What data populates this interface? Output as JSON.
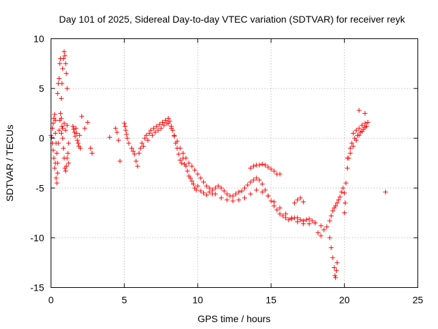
{
  "chart_data": {
    "type": "scatter",
    "title": "Day 101 of 2025, Sidereal Day-to-day VTEC variation (SDTVAR) for receiver reyk",
    "xlabel": "GPS time / hours",
    "ylabel": "SDTVAR / TECUs",
    "xlim": [
      0,
      25
    ],
    "ylim": [
      -15,
      10
    ],
    "xticks": [
      0,
      5,
      10,
      15,
      20,
      25
    ],
    "yticks": [
      -15,
      -10,
      -5,
      0,
      5,
      10
    ],
    "xtick_labels": [
      "0",
      "5",
      "10",
      "15",
      "20",
      "25"
    ],
    "ytick_labels": [
      "-15",
      "-10",
      "-5",
      "0",
      "5",
      "10"
    ],
    "grid": true,
    "marker": "+",
    "color": "#ff0000",
    "series": [
      {
        "name": "SDTVAR",
        "x": [
          0.0,
          0.05,
          0.1,
          0.15,
          0.2,
          0.25,
          0.3,
          0.35,
          0.4,
          0.45,
          0.1,
          0.15,
          0.2,
          0.25,
          0.3,
          0.3,
          0.35,
          0.4,
          0.45,
          0.5,
          0.55,
          0.6,
          0.65,
          0.7,
          0.75,
          0.8,
          0.85,
          0.9,
          0.95,
          1.0,
          1.05,
          1.1,
          1.15,
          1.2,
          0.7,
          0.75,
          0.8,
          0.85,
          0.9,
          0.95,
          1.0,
          1.05,
          1.1,
          0.7,
          0.8,
          0.9,
          1.0,
          1.1,
          1.2,
          0.45,
          0.5,
          0.55,
          0.6,
          0.65,
          1.5,
          1.55,
          1.6,
          1.65,
          1.7,
          1.75,
          1.8,
          1.85,
          1.9,
          1.95,
          2.0,
          2.1,
          2.3,
          2.5,
          2.7,
          2.8,
          4.0,
          4.4,
          4.5,
          4.6,
          4.7,
          5.0,
          5.05,
          5.1,
          5.15,
          5.2,
          5.3,
          5.5,
          5.6,
          5.7,
          5.8,
          5.9,
          6.0,
          6.1,
          6.2,
          6.3,
          6.4,
          6.5,
          6.6,
          6.7,
          6.8,
          6.9,
          7.0,
          7.1,
          7.2,
          7.3,
          7.4,
          7.5,
          7.6,
          7.7,
          7.8,
          7.9,
          8.0,
          8.1,
          8.2,
          8.3,
          8.4,
          8.5,
          8.6,
          8.7,
          8.8,
          8.9,
          9.0,
          9.1,
          9.2,
          9.3,
          9.4,
          9.5,
          9.6,
          9.7,
          9.8,
          9.9,
          8.0,
          8.2,
          8.4,
          8.6,
          8.8,
          9.0,
          9.2,
          9.4,
          9.6,
          9.8,
          10.0,
          10.2,
          10.4,
          10.6,
          10.8,
          11.0,
          10.0,
          10.2,
          10.4,
          10.6,
          10.8,
          11.0,
          11.2,
          11.4,
          11.6,
          11.8,
          12.0,
          12.2,
          12.4,
          12.6,
          12.8,
          13.0,
          13.2,
          13.4,
          13.6,
          13.8,
          14.0,
          14.2,
          14.4,
          14.6,
          14.8,
          15.0,
          15.2,
          15.4,
          15.6,
          15.8,
          16.0,
          16.2,
          16.4,
          16.6,
          16.8,
          17.0,
          17.2,
          17.4,
          17.6,
          17.8,
          18.0,
          11.2,
          11.6,
          12.0,
          12.4,
          12.8,
          13.2,
          13.6,
          14.0,
          14.4,
          14.8,
          15.2,
          15.6,
          16.0,
          16.4,
          16.8,
          17.2,
          17.6,
          18.0,
          18.4,
          13.6,
          13.8,
          14.0,
          14.2,
          14.4,
          14.6,
          14.8,
          15.0,
          15.2,
          15.4,
          15.6,
          16.6,
          16.8,
          17.0,
          17.2,
          18.2,
          18.4,
          18.6,
          18.8,
          19.0,
          19.1,
          19.2,
          19.3,
          19.4,
          19.5,
          19.6,
          19.7,
          19.8,
          19.9,
          20.0,
          20.05,
          19.0,
          19.1,
          19.2,
          19.3,
          19.35,
          19.4,
          19.45,
          19.5,
          20.0,
          20.1,
          20.2,
          20.3,
          20.4,
          20.5,
          20.6,
          20.7,
          20.8,
          20.9,
          21.0,
          21.1,
          21.2,
          21.3,
          21.4,
          21.5,
          21.6,
          20.2,
          20.4,
          20.6,
          20.8,
          21.0,
          21.2,
          21.4,
          21.0,
          21.4,
          22.8
        ],
        "y": [
          0.3,
          0.1,
          -0.5,
          -1.2,
          -2.0,
          -3.0,
          -2.5,
          -4.0,
          -4.5,
          -3.5,
          1.0,
          1.5,
          2.0,
          2.4,
          1.8,
          0.5,
          -0.5,
          -1.5,
          -2.5,
          -0.5,
          0.8,
          1.8,
          2.5,
          2.0,
          1.2,
          0.0,
          -1.0,
          -2.0,
          -3.0,
          -3.3,
          -2.8,
          -2.0,
          -1.5,
          -2.5,
          4.0,
          5.5,
          7.0,
          8.0,
          8.7,
          8.3,
          7.5,
          6.5,
          5.0,
          0.5,
          1.0,
          1.5,
          0.8,
          1.3,
          -0.5,
          4.5,
          5.5,
          6.0,
          7.5,
          8.0,
          1.2,
          0.9,
          0.6,
          0.2,
          1.0,
          0.5,
          -0.2,
          -0.5,
          -0.8,
          0.3,
          -1.0,
          2.2,
          1.0,
          1.6,
          -1.0,
          -1.5,
          0.1,
          1.0,
          0.6,
          -0.2,
          -2.3,
          1.5,
          1.2,
          0.8,
          0.4,
          0.0,
          -0.5,
          -1.0,
          -1.3,
          -1.6,
          -2.3,
          -2.8,
          -1.5,
          -1.0,
          -0.5,
          -0.8,
          0.0,
          0.3,
          -0.2,
          0.5,
          0.8,
          0.3,
          1.0,
          0.6,
          1.2,
          0.8,
          1.4,
          1.0,
          1.6,
          1.3,
          1.8,
          1.5,
          2.0,
          1.7,
          1.2,
          0.8,
          0.2,
          -0.5,
          -1.0,
          -1.6,
          -2.2,
          -2.5,
          -2.0,
          -2.6,
          -2.8,
          -3.3,
          -3.8,
          -4.0,
          -4.3,
          -4.6,
          -5.0,
          -5.2,
          1.5,
          1.0,
          0.3,
          -0.3,
          -1.0,
          -1.5,
          -2.0,
          -2.5,
          -2.8,
          -3.2,
          -4.8,
          -5.3,
          -5.5,
          -5.7,
          -5.4,
          -5.6,
          -3.6,
          -4.0,
          -4.4,
          -4.8,
          -5.0,
          -5.2,
          -5.0,
          -4.8,
          -5.0,
          -5.3,
          -5.6,
          -5.8,
          -5.8,
          -5.6,
          -5.4,
          -5.3,
          -5.0,
          -4.7,
          -4.4,
          -4.2,
          -4.0,
          -4.2,
          -4.6,
          -5.2,
          -5.8,
          -6.3,
          -6.8,
          -7.2,
          -7.6,
          -7.8,
          -8.0,
          -8.2,
          -8.1,
          -8.0,
          -8.0,
          -8.2,
          -8.3,
          -8.2,
          -8.1,
          -8.3,
          -8.5,
          -5.6,
          -6.0,
          -6.2,
          -6.3,
          -6.2,
          -6.0,
          -5.6,
          -5.2,
          -5.4,
          -5.8,
          -6.4,
          -7.0,
          -7.6,
          -8.0,
          -8.4,
          -8.6,
          -8.6,
          -8.5,
          -8.8,
          -3.0,
          -2.8,
          -2.7,
          -2.7,
          -2.6,
          -2.7,
          -2.9,
          -3.1,
          -3.3,
          -3.6,
          -3.6,
          -6.5,
          -6.2,
          -6.0,
          -6.4,
          -9.5,
          -9.8,
          -9.2,
          -8.9,
          -8.3,
          -7.8,
          -7.3,
          -7.0,
          -6.8,
          -6.5,
          -6.2,
          -5.9,
          -5.4,
          -5.0,
          -5.5,
          -6.5,
          -10.0,
          -11.0,
          -12.0,
          -13.0,
          -13.8,
          -14.0,
          -13.3,
          -12.5,
          -7.5,
          -4.5,
          -3.0,
          -2.0,
          -1.0,
          -0.5,
          0.5,
          0.0,
          0.8,
          0.3,
          1.0,
          0.6,
          1.3,
          0.9,
          1.5,
          1.2,
          1.6,
          -2.0,
          -1.5,
          -0.8,
          -0.2,
          0.3,
          0.7,
          1.1,
          2.8,
          2.5,
          -5.4
        ]
      }
    ]
  }
}
